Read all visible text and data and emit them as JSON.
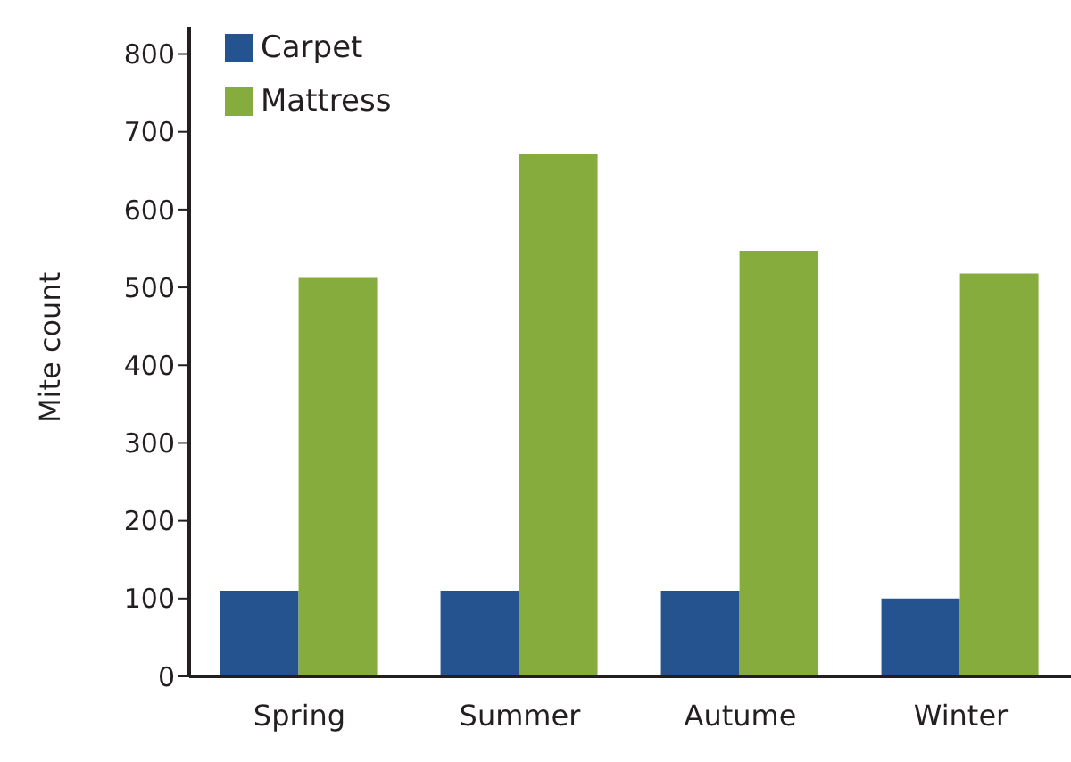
{
  "chart_data": {
    "type": "bar",
    "ylabel": "Mite count",
    "categories": [
      "Spring",
      "Summer",
      "Autume",
      "Winter"
    ],
    "series": [
      {
        "name": "Carpet",
        "color": "#245390",
        "values": [
          110,
          110,
          110,
          100
        ]
      },
      {
        "name": "Mattress",
        "color": "#86ac3e",
        "values": [
          512,
          671,
          547,
          518
        ]
      }
    ],
    "ylim": [
      0,
      835
    ],
    "yticks": [
      0,
      100,
      200,
      300,
      400,
      500,
      600,
      700,
      800
    ],
    "grid": false,
    "legend": "top left"
  }
}
